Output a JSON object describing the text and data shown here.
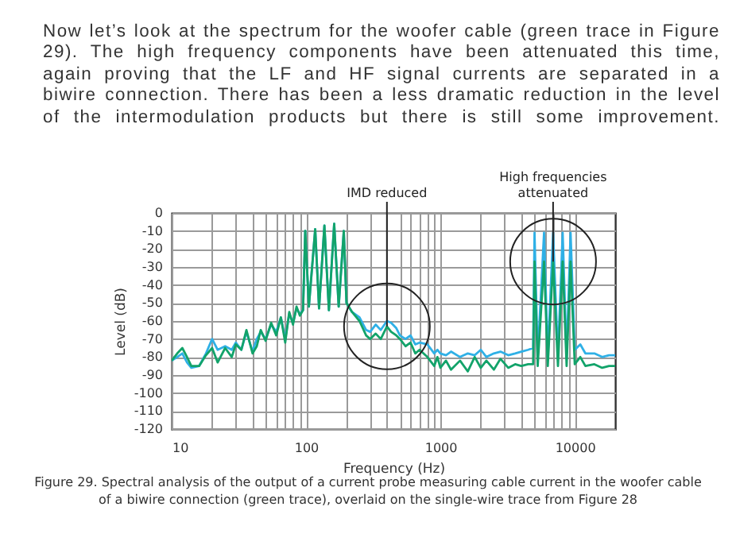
{
  "chart_data": {
    "type": "line",
    "xlabel": "Frequency (Hz)",
    "ylabel": "Level (dB)",
    "x": [
      10,
      11,
      12,
      13,
      14,
      16,
      18,
      20,
      22,
      25,
      28,
      30,
      33,
      36,
      40,
      43,
      46,
      50,
      55,
      60,
      65,
      70,
      75,
      80,
      85,
      90,
      95,
      98.6,
      105,
      117,
      125,
      137,
      148,
      162,
      175,
      191,
      200,
      220,
      250,
      280,
      300,
      330,
      360,
      400,
      430,
      470,
      500,
      550,
      600,
      650,
      700,
      800,
      900,
      950,
      1000,
      1100,
      1200,
      1400,
      1600,
      1800,
      2000,
      2200,
      2500,
      2800,
      3200,
      3600,
      4000,
      4500,
      4900,
      5020,
      5300,
      5910,
      6300,
      6900,
      7500,
      8130,
      8700,
      9310,
      10000,
      11000,
      12000,
      14000,
      16000,
      18000,
      20000
    ],
    "series": [
      {
        "color": "#2fb0e6",
        "values": [
          -82,
          -80,
          -78,
          -83,
          -86,
          -85,
          -78,
          -70,
          -76,
          -74,
          -76,
          -72,
          -76,
          -66,
          -77,
          -70,
          -66,
          -70,
          -62,
          -66,
          -58,
          -70,
          -56,
          -61,
          -53,
          -56,
          -54,
          -10,
          -52,
          -9,
          -53,
          -7,
          -54,
          -6,
          -52,
          -10,
          -50,
          -55,
          -58,
          -65,
          -66,
          -62,
          -65,
          -60,
          -61,
          -64,
          -68,
          -70,
          -68,
          -73,
          -72,
          -73,
          -78,
          -76,
          -78,
          -79,
          -77,
          -80,
          -78,
          -79,
          -76,
          -80,
          -78,
          -77,
          -79,
          -78,
          -77,
          -76,
          -75,
          -11,
          -80,
          -11,
          -80,
          -11,
          -80,
          -11,
          -80,
          -11,
          -76,
          -73,
          -78,
          -78,
          -80,
          -79,
          -79
        ]
      },
      {
        "color": "#12a36a",
        "values": [
          -82,
          -78,
          -75,
          -80,
          -85,
          -85,
          -79,
          -75,
          -83,
          -75,
          -80,
          -73,
          -76,
          -65,
          -78,
          -74,
          -65,
          -71,
          -61,
          -68,
          -58,
          -72,
          -55,
          -62,
          -52,
          -57,
          -54,
          -10,
          -52,
          -9,
          -53,
          -7,
          -54,
          -6,
          -52,
          -10,
          -50,
          -55,
          -60,
          -68,
          -70,
          -67,
          -70,
          -63,
          -66,
          -68,
          -70,
          -74,
          -72,
          -78,
          -76,
          -80,
          -85,
          -80,
          -86,
          -82,
          -87,
          -82,
          -88,
          -80,
          -86,
          -82,
          -87,
          -81,
          -86,
          -84,
          -85,
          -84,
          -84,
          -27,
          -85,
          -27,
          -85,
          -27,
          -85,
          -27,
          -85,
          -27,
          -84,
          -80,
          -85,
          -84,
          -86,
          -85,
          -85
        ]
      }
    ],
    "log": "x",
    "xlim": [
      10,
      20000
    ],
    "xticks": [
      10,
      {
        "value": 20,
        "label": null
      },
      {
        "value": 30,
        "label": null
      },
      {
        "value": 40,
        "label": null
      },
      {
        "value": 50,
        "label": null
      },
      {
        "value": 60,
        "label": null
      },
      {
        "value": 70,
        "label": null
      },
      {
        "value": 80,
        "label": null
      },
      {
        "value": 90,
        "label": null
      },
      100,
      {
        "value": 200,
        "label": null
      },
      {
        "value": 300,
        "label": null
      },
      {
        "value": 400,
        "label": null
      },
      {
        "value": 500,
        "label": null
      },
      {
        "value": 600,
        "label": null
      },
      {
        "value": 700,
        "label": null
      },
      {
        "value": 800,
        "label": null
      },
      {
        "value": 900,
        "label": null
      },
      1000,
      {
        "value": 2000,
        "label": null
      },
      {
        "value": 3000,
        "label": null
      },
      {
        "value": 4000,
        "label": null
      },
      {
        "value": 5000,
        "label": null
      },
      {
        "value": 6000,
        "label": null
      },
      {
        "value": 7000,
        "label": null
      },
      {
        "value": 8000,
        "label": null
      },
      {
        "value": 9000,
        "label": null
      },
      10000
    ],
    "ylim": [
      -120,
      0
    ],
    "yticks": [
      -120,
      -110,
      -100,
      -90,
      -80,
      -70,
      -60,
      -50,
      -40,
      -30,
      -20,
      -10,
      0
    ],
    "grid": true,
    "marker": "none",
    "line_style": "solid",
    "annotations": [
      "Now let’s look at the spectrum for the woofer cable (green trace in Figure 29). The high frequency components have been attenuated this time, again proving that the LF and HF signal currents are separated in a biwire connection. There has been a less dramatic reduction in the level of the intermodulation products but there is still some improvement.",
      {
        "text": "IMD reduced",
        "x": 400,
        "y": -63
      },
      {
        "text": "High frequencies\nattenuated",
        "x": 6900,
        "y": -27
      },
      "Figure 29. Spectral analysis of the output of a current probe measuring cable current in the woofer cable of a biwire connection (green trace), overlaid on the single-wire trace from Figure 28"
    ]
  }
}
